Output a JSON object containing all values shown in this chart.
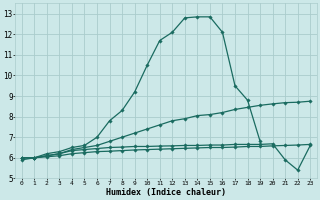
{
  "title": "",
  "xlabel": "Humidex (Indice chaleur)",
  "ylabel": "",
  "background_color": "#cce8e8",
  "grid_color": "#aacccc",
  "line_color": "#1a6b60",
  "xlim": [
    -0.5,
    23.5
  ],
  "ylim": [
    5,
    13.5
  ],
  "xticks": [
    0,
    1,
    2,
    3,
    4,
    5,
    6,
    7,
    8,
    9,
    10,
    11,
    12,
    13,
    14,
    15,
    16,
    17,
    18,
    19,
    20,
    21,
    22,
    23
  ],
  "yticks": [
    5,
    6,
    7,
    8,
    9,
    10,
    11,
    12,
    13
  ],
  "series": [
    {
      "x": [
        0,
        1,
        2,
        3,
        4,
        5,
        6,
        7,
        8,
        9,
        10,
        11,
        12,
        13,
        14,
        15,
        16,
        17,
        18,
        19,
        20,
        21,
        22,
        23
      ],
      "y": [
        5.9,
        6.0,
        6.2,
        6.3,
        6.5,
        6.6,
        7.0,
        7.8,
        8.3,
        9.2,
        10.5,
        11.7,
        12.1,
        12.8,
        12.85,
        12.85,
        12.1,
        9.5,
        8.8,
        6.8,
        null,
        null,
        null,
        null
      ]
    },
    {
      "x": [
        0,
        1,
        2,
        3,
        4,
        5,
        6,
        7,
        8,
        9,
        10,
        11,
        12,
        13,
        14,
        15,
        16,
        17,
        18,
        19,
        20,
        21,
        22,
        23
      ],
      "y": [
        6.0,
        6.0,
        6.1,
        6.2,
        6.4,
        6.5,
        6.6,
        6.8,
        7.0,
        7.2,
        7.4,
        7.6,
        7.8,
        7.9,
        8.05,
        8.1,
        8.2,
        8.35,
        8.45,
        8.55,
        8.62,
        8.68,
        8.7,
        8.75
      ]
    },
    {
      "x": [
        0,
        1,
        2,
        3,
        4,
        5,
        6,
        7,
        8,
        9,
        10,
        11,
        12,
        13,
        14,
        15,
        16,
        17,
        18,
        19,
        20,
        21,
        22,
        23
      ],
      "y": [
        6.0,
        6.0,
        6.1,
        6.2,
        6.35,
        6.4,
        6.45,
        6.5,
        6.52,
        6.55,
        6.55,
        6.57,
        6.58,
        6.6,
        6.6,
        6.62,
        6.62,
        6.65,
        6.65,
        6.65,
        6.68,
        5.9,
        5.4,
        6.6
      ]
    },
    {
      "x": [
        0,
        1,
        2,
        3,
        4,
        5,
        6,
        7,
        8,
        9,
        10,
        11,
        12,
        13,
        14,
        15,
        16,
        17,
        18,
        19,
        20,
        21,
        22,
        23
      ],
      "y": [
        6.0,
        6.0,
        6.05,
        6.1,
        6.2,
        6.25,
        6.3,
        6.32,
        6.35,
        6.38,
        6.4,
        6.42,
        6.44,
        6.46,
        6.48,
        6.5,
        6.5,
        6.52,
        6.55,
        6.55,
        6.58,
        6.6,
        6.62,
        6.65
      ]
    }
  ]
}
